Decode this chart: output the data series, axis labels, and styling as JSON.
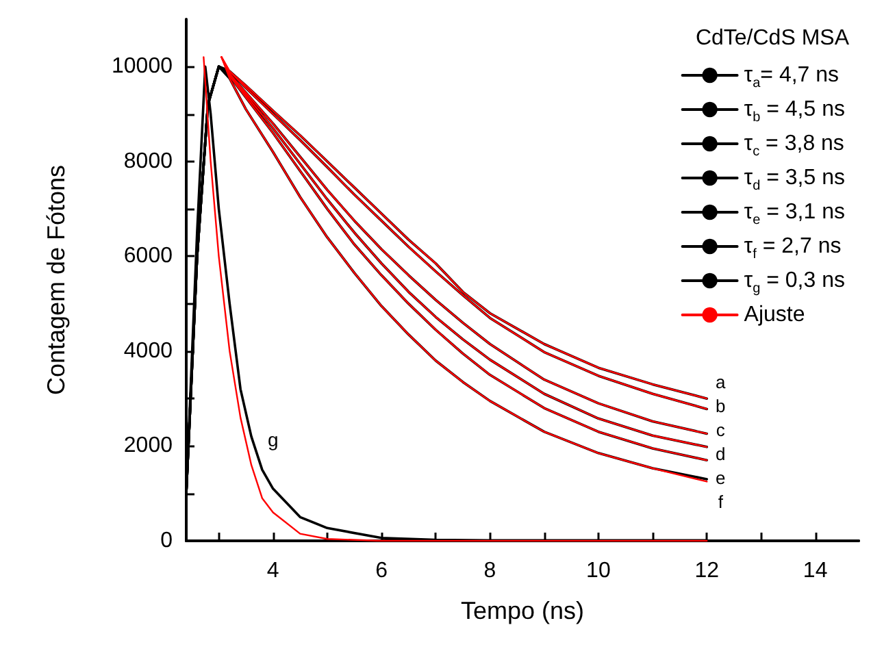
{
  "chart_data": {
    "type": "line",
    "xlabel": "Tempo (ns)",
    "ylabel": "Contagem de Fótons",
    "legend_title": "CdTe/CdS MSA",
    "legend": "top right",
    "grid": false,
    "marker": "none",
    "line_style": "solid",
    "xlim": [
      2.4,
      14.8
    ],
    "ylim": [
      0,
      11000
    ],
    "xticks": [
      {
        "value": 3,
        "label": null
      },
      4,
      {
        "value": 5,
        "label": null
      },
      6,
      {
        "value": 7,
        "label": null
      },
      8,
      {
        "value": 9,
        "label": null
      },
      10,
      {
        "value": 11,
        "label": null
      },
      12,
      {
        "value": 13,
        "label": null
      },
      14
    ],
    "yticks": [
      0,
      {
        "value": 1000,
        "label": null
      },
      2000,
      {
        "value": 3000,
        "label": null
      },
      4000,
      {
        "value": 5000,
        "label": null
      },
      6000,
      {
        "value": 7000,
        "label": null
      },
      8000,
      {
        "value": 9000,
        "label": null
      },
      10000
    ],
    "series": [
      {
        "name": "τ$_{a}$= 4,7 ns",
        "color": "#000000",
        "x": [
          2.4,
          2.6,
          2.8,
          3.0,
          3.2,
          3.5,
          4,
          4.5,
          5,
          5.5,
          6,
          6.5,
          7,
          7.5,
          8,
          9,
          10,
          11,
          12
        ],
        "values": [
          1000,
          6000,
          9200,
          10000,
          9900,
          9600,
          9070,
          8550,
          8000,
          7450,
          6900,
          6350,
          5850,
          5250,
          4800,
          4150,
          3650,
          3300,
          3000
        ]
      },
      {
        "name": "τ$_{b}$ = 4,5 ns",
        "color": "#000000",
        "x": [
          2.4,
          2.6,
          2.8,
          3.0,
          3.2,
          3.5,
          4,
          4.5,
          5,
          5.5,
          6,
          6.5,
          7,
          7.5,
          8,
          9,
          10,
          11,
          12
        ],
        "values": [
          1000,
          6000,
          9200,
          10000,
          9900,
          9550,
          9000,
          8450,
          7880,
          7300,
          6750,
          6200,
          5680,
          5180,
          4700,
          3980,
          3480,
          3100,
          2780
        ]
      },
      {
        "name": "τ$_{c}$ = 3,8 ns",
        "color": "#000000",
        "x": [
          2.4,
          2.6,
          2.8,
          3.0,
          3.2,
          3.5,
          4,
          4.5,
          5,
          5.5,
          6,
          6.5,
          7,
          7.5,
          8,
          9,
          10,
          11,
          12
        ],
        "values": [
          1000,
          6000,
          9200,
          10000,
          9850,
          9450,
          8800,
          8100,
          7400,
          6750,
          6150,
          5600,
          5080,
          4600,
          4150,
          3400,
          2900,
          2520,
          2260
        ]
      },
      {
        "name": "τ$_{d}$ = 3,5 ns",
        "color": "#000000",
        "x": [
          2.4,
          2.6,
          2.8,
          3.0,
          3.2,
          3.5,
          4,
          4.5,
          5,
          5.5,
          6,
          6.5,
          7,
          7.5,
          8,
          9,
          10,
          11,
          12
        ],
        "values": [
          1000,
          6000,
          9200,
          10000,
          9850,
          9400,
          8700,
          7950,
          7200,
          6500,
          5850,
          5250,
          4720,
          4250,
          3820,
          3100,
          2580,
          2220,
          1980
        ]
      },
      {
        "name": "τ$_{e}$ = 3,1 ns",
        "color": "#000000",
        "x": [
          2.4,
          2.6,
          2.8,
          3.0,
          3.2,
          3.5,
          4,
          4.5,
          5,
          5.5,
          6,
          6.5,
          7,
          7.5,
          8,
          9,
          10,
          11,
          12
        ],
        "values": [
          1000,
          6000,
          9200,
          10000,
          9800,
          9350,
          8600,
          7800,
          7000,
          6250,
          5600,
          5000,
          4450,
          3950,
          3500,
          2800,
          2300,
          1950,
          1700
        ]
      },
      {
        "name": "τ$_{f}$ = 2,7 ns",
        "color": "#000000",
        "x": [
          2.4,
          2.6,
          2.8,
          3.0,
          3.2,
          3.5,
          4,
          4.5,
          5,
          5.5,
          6,
          6.5,
          7,
          7.5,
          8,
          9,
          10,
          11,
          12
        ],
        "values": [
          1000,
          6000,
          9200,
          10000,
          9750,
          9100,
          8200,
          7250,
          6400,
          5650,
          4950,
          4350,
          3800,
          3350,
          2950,
          2300,
          1850,
          1530,
          1300
        ]
      },
      {
        "name": "τ$_{g}$ = 0,3 ns",
        "color": "#000000",
        "x": [
          2.4,
          2.6,
          2.75,
          2.85,
          3.0,
          3.2,
          3.4,
          3.6,
          3.8,
          4.0,
          4.5,
          5,
          6,
          7,
          8,
          10,
          12
        ],
        "values": [
          1000,
          6500,
          10000,
          9000,
          7000,
          5000,
          3200,
          2200,
          1500,
          1100,
          500,
          270,
          60,
          20,
          10,
          10,
          10
        ]
      },
      {
        "name": "Ajuste",
        "color": "#ff0000",
        "x": [
          3.05,
          3.2,
          3.5,
          4,
          4.5,
          5,
          5.5,
          6,
          6.5,
          7,
          7.5,
          8,
          9,
          10,
          11,
          12
        ],
        "values": [
          10200,
          9900,
          9600,
          9070,
          8550,
          8000,
          7450,
          6900,
          6350,
          5850,
          5250,
          4800,
          4150,
          3650,
          3300,
          3000
        ]
      },
      {
        "color": "#ff0000",
        "x": [
          3.05,
          3.2,
          3.5,
          4,
          4.5,
          5,
          5.5,
          6,
          6.5,
          7,
          7.5,
          8,
          9,
          10,
          11,
          12
        ],
        "values": [
          10200,
          9900,
          9550,
          9000,
          8450,
          7880,
          7300,
          6750,
          6200,
          5680,
          5180,
          4700,
          3980,
          3480,
          3100,
          2780
        ]
      },
      {
        "color": "#ff0000",
        "x": [
          3.05,
          3.2,
          3.5,
          4,
          4.5,
          5,
          5.5,
          6,
          6.5,
          7,
          7.5,
          8,
          9,
          10,
          11,
          12
        ],
        "values": [
          10200,
          9850,
          9450,
          8800,
          8100,
          7400,
          6750,
          6150,
          5600,
          5080,
          4600,
          4150,
          3400,
          2900,
          2520,
          2260
        ]
      },
      {
        "color": "#ff0000",
        "x": [
          3.05,
          3.2,
          3.5,
          4,
          4.5,
          5,
          5.5,
          6,
          6.5,
          7,
          7.5,
          8,
          9,
          10,
          11,
          12
        ],
        "values": [
          10200,
          9850,
          9400,
          8700,
          7950,
          7200,
          6500,
          5850,
          5250,
          4720,
          4250,
          3820,
          3100,
          2580,
          2220,
          1980
        ]
      },
      {
        "color": "#ff0000",
        "x": [
          3.05,
          3.2,
          3.5,
          4,
          4.5,
          5,
          5.5,
          6,
          6.5,
          7,
          7.5,
          8,
          9,
          10,
          11,
          12
        ],
        "values": [
          10200,
          9800,
          9350,
          8600,
          7800,
          7000,
          6250,
          5600,
          5000,
          4450,
          3950,
          3500,
          2800,
          2300,
          1950,
          1700
        ]
      },
      {
        "color": "#ff0000",
        "x": [
          3.05,
          3.2,
          3.5,
          4,
          4.5,
          5,
          5.5,
          6,
          6.5,
          7,
          7.5,
          8,
          9,
          10,
          11,
          12
        ],
        "values": [
          10200,
          9750,
          9100,
          8200,
          7250,
          6400,
          5650,
          4950,
          4350,
          3800,
          3350,
          2950,
          2300,
          1850,
          1530,
          1250
        ]
      },
      {
        "color": "#ff0000",
        "x": [
          2.72,
          2.85,
          3.0,
          3.2,
          3.4,
          3.6,
          3.8,
          4.0,
          4.5,
          5,
          6,
          8,
          10,
          12
        ],
        "values": [
          10200,
          8000,
          6000,
          4000,
          2600,
          1600,
          900,
          600,
          150,
          40,
          0,
          0,
          0,
          0
        ]
      }
    ],
    "annotations": [
      "a",
      "b",
      "c",
      "d",
      "e",
      "f",
      {
        "text": "g",
        "x": 3.8,
        "y": 1500
      }
    ]
  }
}
